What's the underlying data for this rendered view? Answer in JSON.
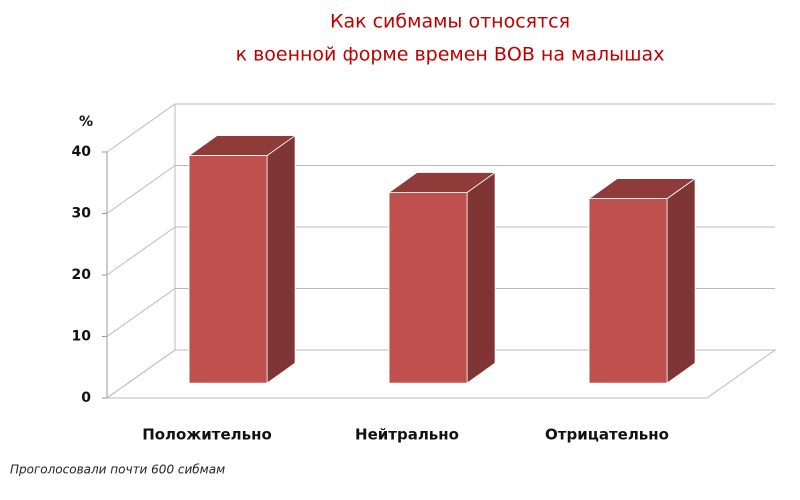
{
  "chart_data": {
    "type": "bar3d",
    "title": [
      "Как сибмамы относятся",
      "к военной форме времен ВОВ на малышах"
    ],
    "y_label": "%",
    "categories": [
      "Положительно",
      "Нейтрально",
      "Отрицательно"
    ],
    "values": [
      37,
      31,
      30
    ],
    "color": "#c0504d",
    "ylim": [
      0,
      40
    ],
    "yticks": [
      0,
      10,
      20,
      30,
      40
    ],
    "grid": true,
    "note": "Проголосовали почти 600 сибмам"
  }
}
